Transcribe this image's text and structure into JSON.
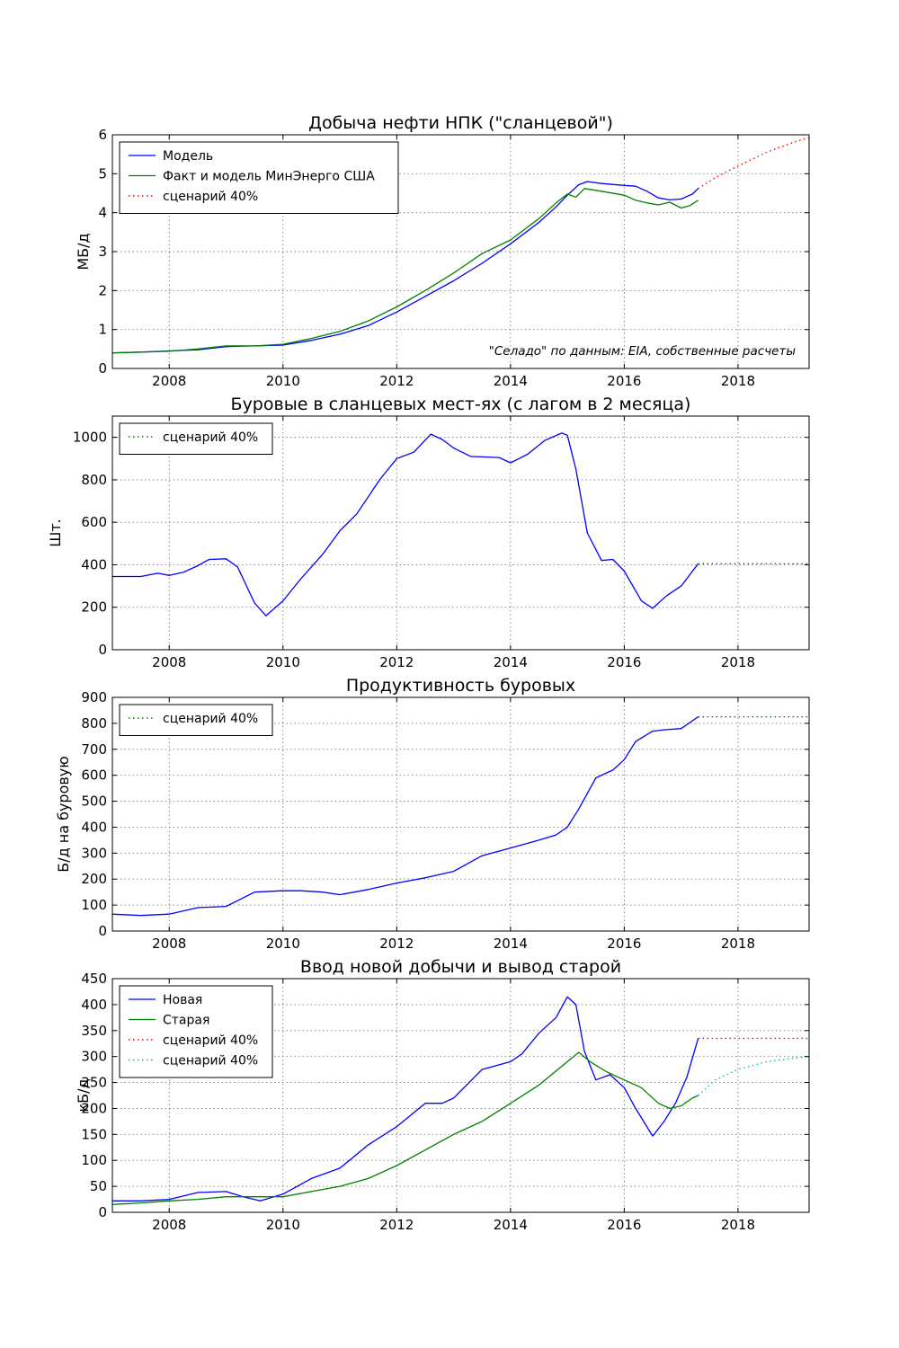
{
  "colors": {
    "blue": "#0000ff",
    "green": "#008000",
    "red": "#ff0000",
    "cyan": "#00bfbf"
  },
  "chart_data": [
    {
      "type": "line",
      "title": "Добыча нефти НПК (\"сланцевой\")",
      "xlabel": "",
      "ylabel": "МБ/д",
      "xlim": [
        2007.0,
        2019.25
      ],
      "ylim": [
        0,
        6
      ],
      "xticks": [
        2008,
        2010,
        2012,
        2014,
        2016,
        2018
      ],
      "yticks": [
        0,
        1,
        2,
        3,
        4,
        5,
        6
      ],
      "grid": true,
      "legend_loc": "upper left",
      "annotation": "\"Селадо\" по данным: EIA, собственные расчеты",
      "series": [
        {
          "name": "Модель",
          "color": "blue",
          "style": "solid",
          "points": [
            [
              2007.0,
              0.4
            ],
            [
              2007.5,
              0.42
            ],
            [
              2008.0,
              0.45
            ],
            [
              2008.5,
              0.48
            ],
            [
              2009.0,
              0.56
            ],
            [
              2009.5,
              0.58
            ],
            [
              2010.0,
              0.6
            ],
            [
              2010.5,
              0.72
            ],
            [
              2011.0,
              0.88
            ],
            [
              2011.5,
              1.1
            ],
            [
              2012.0,
              1.45
            ],
            [
              2012.5,
              1.85
            ],
            [
              2013.0,
              2.25
            ],
            [
              2013.5,
              2.7
            ],
            [
              2014.0,
              3.2
            ],
            [
              2014.5,
              3.75
            ],
            [
              2014.8,
              4.15
            ],
            [
              2015.0,
              4.45
            ],
            [
              2015.2,
              4.72
            ],
            [
              2015.35,
              4.8
            ],
            [
              2015.6,
              4.75
            ],
            [
              2016.0,
              4.7
            ],
            [
              2016.2,
              4.68
            ],
            [
              2016.4,
              4.55
            ],
            [
              2016.6,
              4.38
            ],
            [
              2016.8,
              4.33
            ],
            [
              2017.0,
              4.35
            ],
            [
              2017.2,
              4.48
            ],
            [
              2017.3,
              4.62
            ]
          ]
        },
        {
          "name": "Факт и модель МинЭнерго США",
          "color": "green",
          "style": "solid",
          "points": [
            [
              2007.0,
              0.4
            ],
            [
              2007.5,
              0.42
            ],
            [
              2008.0,
              0.44
            ],
            [
              2008.5,
              0.5
            ],
            [
              2009.0,
              0.58
            ],
            [
              2009.5,
              0.58
            ],
            [
              2010.0,
              0.62
            ],
            [
              2010.5,
              0.77
            ],
            [
              2011.0,
              0.95
            ],
            [
              2011.5,
              1.22
            ],
            [
              2012.0,
              1.58
            ],
            [
              2012.5,
              2.0
            ],
            [
              2013.0,
              2.45
            ],
            [
              2013.5,
              2.95
            ],
            [
              2014.0,
              3.3
            ],
            [
              2014.5,
              3.85
            ],
            [
              2014.8,
              4.25
            ],
            [
              2015.0,
              4.48
            ],
            [
              2015.15,
              4.4
            ],
            [
              2015.3,
              4.62
            ],
            [
              2015.6,
              4.55
            ],
            [
              2016.0,
              4.45
            ],
            [
              2016.2,
              4.32
            ],
            [
              2016.4,
              4.25
            ],
            [
              2016.6,
              4.2
            ],
            [
              2016.8,
              4.27
            ],
            [
              2017.0,
              4.12
            ],
            [
              2017.15,
              4.18
            ],
            [
              2017.3,
              4.32
            ]
          ]
        },
        {
          "name": "сценарий 40%",
          "color": "red",
          "style": "dotted",
          "points": [
            [
              2017.3,
              4.62
            ],
            [
              2017.6,
              4.9
            ],
            [
              2018.0,
              5.2
            ],
            [
              2018.5,
              5.55
            ],
            [
              2019.0,
              5.82
            ],
            [
              2019.25,
              5.93
            ]
          ]
        }
      ]
    },
    {
      "type": "line",
      "title": "Буровые в сланцевых мест-ях (с лагом в 2 месяца)",
      "xlabel": "",
      "ylabel": "Шт.",
      "xlim": [
        2007.0,
        2019.25
      ],
      "ylim": [
        0,
        1100
      ],
      "xticks": [
        2008,
        2010,
        2012,
        2014,
        2016,
        2018
      ],
      "yticks": [
        0,
        200,
        400,
        600,
        800,
        1000
      ],
      "grid": true,
      "legend_loc": "upper left",
      "series": [
        {
          "name": "",
          "color": "blue",
          "style": "solid",
          "points": [
            [
              2007.0,
              345
            ],
            [
              2007.5,
              345
            ],
            [
              2007.8,
              360
            ],
            [
              2008.0,
              350
            ],
            [
              2008.25,
              365
            ],
            [
              2008.5,
              395
            ],
            [
              2008.7,
              425
            ],
            [
              2009.0,
              428
            ],
            [
              2009.2,
              390
            ],
            [
              2009.5,
              220
            ],
            [
              2009.7,
              160
            ],
            [
              2010.0,
              230
            ],
            [
              2010.3,
              330
            ],
            [
              2010.7,
              450
            ],
            [
              2011.0,
              560
            ],
            [
              2011.3,
              640
            ],
            [
              2011.7,
              800
            ],
            [
              2012.0,
              900
            ],
            [
              2012.3,
              930
            ],
            [
              2012.6,
              1015
            ],
            [
              2012.8,
              990
            ],
            [
              2013.0,
              950
            ],
            [
              2013.3,
              910
            ],
            [
              2013.8,
              905
            ],
            [
              2014.0,
              880
            ],
            [
              2014.3,
              920
            ],
            [
              2014.6,
              985
            ],
            [
              2014.9,
              1020
            ],
            [
              2015.0,
              1010
            ],
            [
              2015.15,
              850
            ],
            [
              2015.35,
              550
            ],
            [
              2015.6,
              420
            ],
            [
              2015.8,
              425
            ],
            [
              2016.0,
              370
            ],
            [
              2016.3,
              230
            ],
            [
              2016.5,
              195
            ],
            [
              2016.75,
              255
            ],
            [
              2017.0,
              300
            ],
            [
              2017.3,
              405
            ]
          ]
        },
        {
          "name": "сценарий 40%",
          "color": "green",
          "style": "dotted",
          "points": [
            [
              2017.3,
              405
            ],
            [
              2018.0,
              405
            ],
            [
              2019.25,
              405
            ]
          ]
        }
      ]
    },
    {
      "type": "line",
      "title": "Продуктивность буровых",
      "xlabel": "",
      "ylabel": "Б/д на буровую",
      "xlim": [
        2007.0,
        2019.25
      ],
      "ylim": [
        0,
        900
      ],
      "xticks": [
        2008,
        2010,
        2012,
        2014,
        2016,
        2018
      ],
      "yticks": [
        0,
        100,
        200,
        300,
        400,
        500,
        600,
        700,
        800,
        900
      ],
      "grid": true,
      "legend_loc": "upper left",
      "series": [
        {
          "name": "",
          "color": "blue",
          "style": "solid",
          "points": [
            [
              2007.0,
              65
            ],
            [
              2007.5,
              60
            ],
            [
              2008.0,
              65
            ],
            [
              2008.5,
              90
            ],
            [
              2009.0,
              95
            ],
            [
              2009.5,
              150
            ],
            [
              2010.0,
              155
            ],
            [
              2010.3,
              155
            ],
            [
              2010.7,
              150
            ],
            [
              2011.0,
              140
            ],
            [
              2011.5,
              160
            ],
            [
              2012.0,
              185
            ],
            [
              2012.5,
              205
            ],
            [
              2013.0,
              230
            ],
            [
              2013.5,
              290
            ],
            [
              2014.0,
              320
            ],
            [
              2014.5,
              350
            ],
            [
              2014.8,
              370
            ],
            [
              2015.0,
              400
            ],
            [
              2015.2,
              470
            ],
            [
              2015.5,
              590
            ],
            [
              2015.8,
              620
            ],
            [
              2016.0,
              660
            ],
            [
              2016.2,
              730
            ],
            [
              2016.5,
              770
            ],
            [
              2016.7,
              775
            ],
            [
              2017.0,
              780
            ],
            [
              2017.3,
              825
            ]
          ]
        },
        {
          "name": "сценарий 40%",
          "color": "green",
          "style": "dotted",
          "points": [
            [
              2017.3,
              825
            ],
            [
              2018.0,
              825
            ],
            [
              2019.25,
              825
            ]
          ]
        }
      ]
    },
    {
      "type": "line",
      "title": "Ввод новой добычи и вывод старой",
      "xlabel": "",
      "ylabel": "кБ/д",
      "xlim": [
        2007.0,
        2019.25
      ],
      "ylim": [
        0,
        450
      ],
      "xticks": [
        2008,
        2010,
        2012,
        2014,
        2016,
        2018
      ],
      "yticks": [
        0,
        50,
        100,
        150,
        200,
        250,
        300,
        350,
        400,
        450
      ],
      "grid": true,
      "legend_loc": "upper left",
      "series": [
        {
          "name": "Новая",
          "color": "blue",
          "style": "solid",
          "points": [
            [
              2007.0,
              22
            ],
            [
              2007.5,
              22
            ],
            [
              2008.0,
              25
            ],
            [
              2008.5,
              38
            ],
            [
              2009.0,
              40
            ],
            [
              2009.3,
              30
            ],
            [
              2009.6,
              22
            ],
            [
              2010.0,
              35
            ],
            [
              2010.5,
              65
            ],
            [
              2011.0,
              85
            ],
            [
              2011.5,
              130
            ],
            [
              2012.0,
              165
            ],
            [
              2012.5,
              210
            ],
            [
              2012.8,
              210
            ],
            [
              2013.0,
              220
            ],
            [
              2013.5,
              275
            ],
            [
              2014.0,
              290
            ],
            [
              2014.2,
              305
            ],
            [
              2014.5,
              345
            ],
            [
              2014.8,
              375
            ],
            [
              2015.0,
              415
            ],
            [
              2015.15,
              400
            ],
            [
              2015.3,
              310
            ],
            [
              2015.5,
              255
            ],
            [
              2015.75,
              265
            ],
            [
              2016.0,
              240
            ],
            [
              2016.2,
              200
            ],
            [
              2016.5,
              147
            ],
            [
              2016.7,
              175
            ],
            [
              2016.9,
              210
            ],
            [
              2017.1,
              260
            ],
            [
              2017.3,
              335
            ]
          ]
        },
        {
          "name": "Старая",
          "color": "green",
          "style": "solid",
          "points": [
            [
              2007.0,
              15
            ],
            [
              2007.5,
              18
            ],
            [
              2008.0,
              22
            ],
            [
              2008.5,
              25
            ],
            [
              2009.0,
              30
            ],
            [
              2009.5,
              30
            ],
            [
              2010.0,
              30
            ],
            [
              2010.5,
              40
            ],
            [
              2011.0,
              50
            ],
            [
              2011.5,
              65
            ],
            [
              2012.0,
              90
            ],
            [
              2012.5,
              120
            ],
            [
              2013.0,
              150
            ],
            [
              2013.5,
              175
            ],
            [
              2014.0,
              210
            ],
            [
              2014.5,
              245
            ],
            [
              2015.0,
              290
            ],
            [
              2015.2,
              308
            ],
            [
              2015.4,
              290
            ],
            [
              2015.7,
              270
            ],
            [
              2016.0,
              255
            ],
            [
              2016.3,
              240
            ],
            [
              2016.6,
              210
            ],
            [
              2016.8,
              200
            ],
            [
              2017.0,
              205
            ],
            [
              2017.2,
              220
            ],
            [
              2017.3,
              225
            ]
          ]
        },
        {
          "name": "сценарий 40%",
          "color": "red",
          "style": "dotted",
          "points": [
            [
              2017.3,
              335
            ],
            [
              2018.0,
              335
            ],
            [
              2019.25,
              335
            ]
          ]
        },
        {
          "name": "сценарий 40%",
          "color": "cyan",
          "style": "dotted",
          "points": [
            [
              2017.3,
              225
            ],
            [
              2017.6,
              255
            ],
            [
              2018.0,
              275
            ],
            [
              2018.5,
              290
            ],
            [
              2019.0,
              297
            ],
            [
              2019.25,
              300
            ]
          ]
        }
      ]
    }
  ]
}
